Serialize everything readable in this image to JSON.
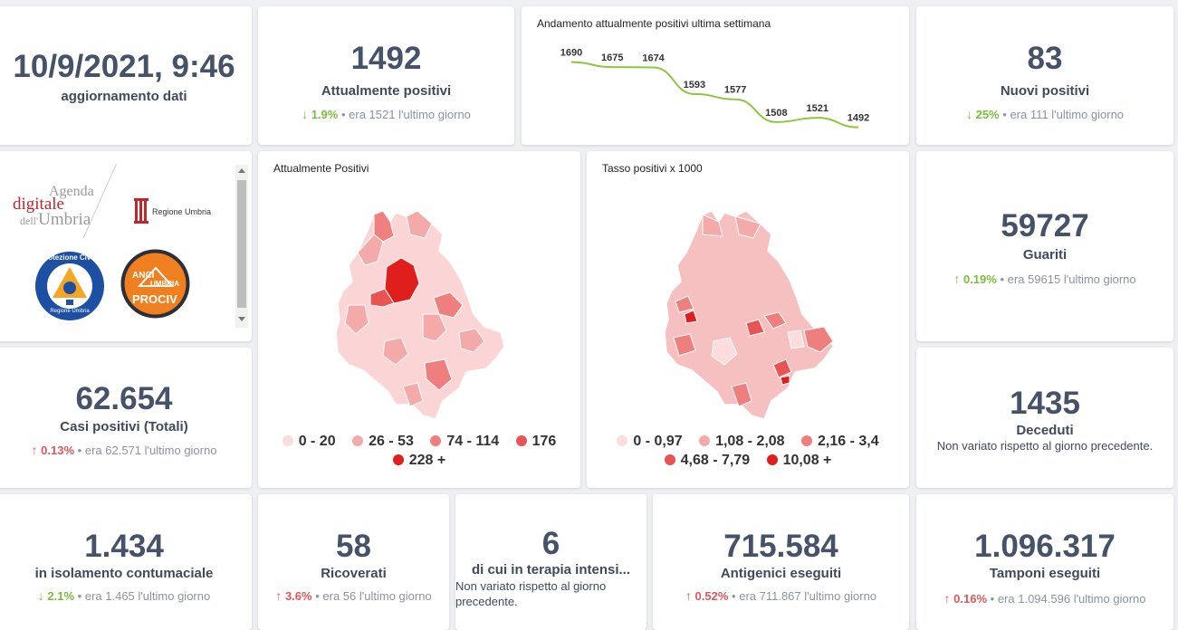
{
  "update": {
    "datetime": "10/9/2021, 9:46",
    "label": "aggiornamento dati"
  },
  "attualmente_positivi": {
    "value": "1492",
    "label": "Attualmente positivi",
    "pct": "1.9%",
    "prev": "era 1521",
    "period": "l'ultimo giorno",
    "direction": "down"
  },
  "trend": {
    "title": "Andamento attualmente positivi ultima settimana",
    "chart_data": {
      "type": "line",
      "values": [
        1690,
        1675,
        1674,
        1593,
        1577,
        1508,
        1521,
        1492
      ],
      "labels": [
        "1690",
        "1675",
        "1674",
        "1593",
        "1577",
        "1508",
        "1521",
        "1492"
      ],
      "color": "#8dc63f"
    }
  },
  "nuovi_positivi": {
    "value": "83",
    "label": "Nuovi positivi",
    "pct": "25%",
    "prev": "era 111",
    "period": "l'ultimo giorno",
    "direction": "down"
  },
  "logos": {
    "agenda_line1": "Agenda",
    "agenda_line2": "digitale",
    "agenda_line3a": "dell'",
    "agenda_line3b": "Umbria",
    "regione": "Regione Umbria",
    "protezione_top": "Protezione Civile",
    "protezione_bottom": "Regione Umbria",
    "anci1": "ANCI",
    "anci2": "UMBRIA",
    "anci3": "PROCIV"
  },
  "map_positivi": {
    "title": "Attualmente Positivi",
    "legend": [
      {
        "label": "0 - 20",
        "color": "#fcdcdc"
      },
      {
        "label": "26 - 53",
        "color": "#f5aaaa"
      },
      {
        "label": "74 - 114",
        "color": "#ef7e7e"
      },
      {
        "label": "176",
        "color": "#e85454"
      },
      {
        "label": "228 +",
        "color": "#e01e1e"
      }
    ]
  },
  "map_tasso": {
    "title": "Tasso positivi x 1000",
    "legend": [
      {
        "label": "0 - 0,97",
        "color": "#fcdcdc"
      },
      {
        "label": "1,08 - 2,08",
        "color": "#f5aaaa"
      },
      {
        "label": "2,16 - 3,4",
        "color": "#ef7e7e"
      },
      {
        "label": "4,68 - 7,79",
        "color": "#e85454"
      },
      {
        "label": "10,08 +",
        "color": "#e01e1e"
      }
    ]
  },
  "guariti": {
    "value": "59727",
    "label": "Guariti",
    "pct": "0.19%",
    "prev": "era 59615",
    "period": "l'ultimo giorno",
    "direction": "up"
  },
  "casi_totali": {
    "value": "62.654",
    "label": "Casi positivi (Totali)",
    "pct": "0.13%",
    "prev": "era 62.571",
    "period": "l'ultimo giorno",
    "direction": "up"
  },
  "deceduti": {
    "value": "1435",
    "label": "Deceduti",
    "note": "Non variato rispetto al giorno precedente."
  },
  "isolamento": {
    "value": "1.434",
    "label": "in isolamento contumaciale",
    "pct": "2.1%",
    "prev": "era 1.465",
    "period": "l'ultimo giorno",
    "direction": "down"
  },
  "ricoverati": {
    "value": "58",
    "label": "Ricoverati",
    "pct": "3.6%",
    "prev": "era 56",
    "period": "l'ultimo giorno",
    "direction": "up"
  },
  "terapia": {
    "value": "6",
    "label": "di cui in terapia intensi...",
    "note1": "Non variato rispetto al giorno",
    "note2": "precedente."
  },
  "antigenici": {
    "value": "715.584",
    "label": "Antigenici eseguiti",
    "pct": "0.52%",
    "prev": "era 711.867",
    "period": "l'ultimo giorno",
    "direction": "up"
  },
  "tamponi": {
    "value": "1.096.317",
    "label": "Tamponi eseguiti",
    "pct": "0.16%",
    "prev": "era 1.094.596",
    "period": "l'ultimo giorno",
    "direction": "up"
  },
  "icons": {
    "down": "↓",
    "up": "↑",
    "bullet": "•"
  }
}
